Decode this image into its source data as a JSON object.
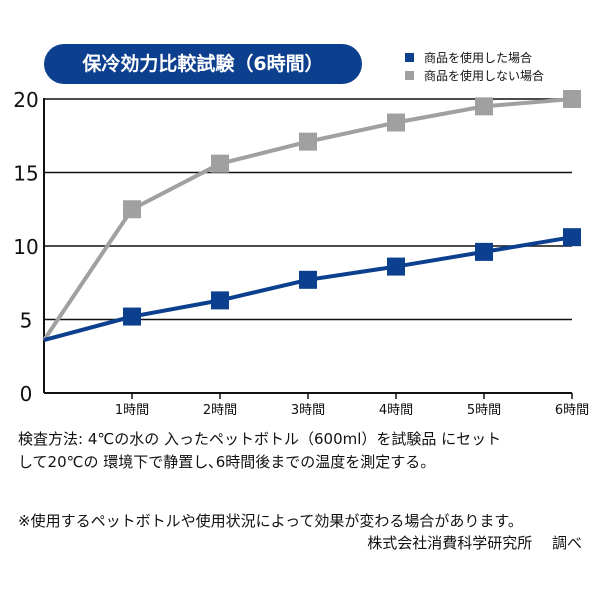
{
  "chart_data": {
    "type": "line",
    "title": "保冷効力比較試験（6時間）",
    "categories": [
      "",
      "1時間",
      "2時間",
      "3時間",
      "4時間",
      "5時間",
      "6時間"
    ],
    "x": [
      0,
      1,
      2,
      3,
      4,
      5,
      6
    ],
    "ylim": [
      0,
      20
    ],
    "yticks": [
      "0",
      "5",
      "10",
      "15",
      "20"
    ],
    "grid": true,
    "legend": "top-right",
    "series": [
      {
        "name": "商品を使用した場合",
        "color": "#0d3f8f",
        "values": [
          3.6,
          5.2,
          6.3,
          7.7,
          8.6,
          9.6,
          10.6
        ]
      },
      {
        "name": "商品を使用しない場合",
        "color": "#a0a0a0",
        "values": [
          3.6,
          12.5,
          15.6,
          17.1,
          18.4,
          19.5,
          20.0
        ]
      }
    ]
  },
  "notes": {
    "method_line1": "検査方法: 4℃の水の 入ったペットボトル（600ml）を試験品 にセット",
    "method_line2": "して20℃の 環境下で静置し､6時間後までの温度を測定する。",
    "disclaimer": "※使用するペットボトルや使用状況によって効果が変わる場合があります。",
    "source": "株式会社消費科学研究所　 調べ"
  }
}
